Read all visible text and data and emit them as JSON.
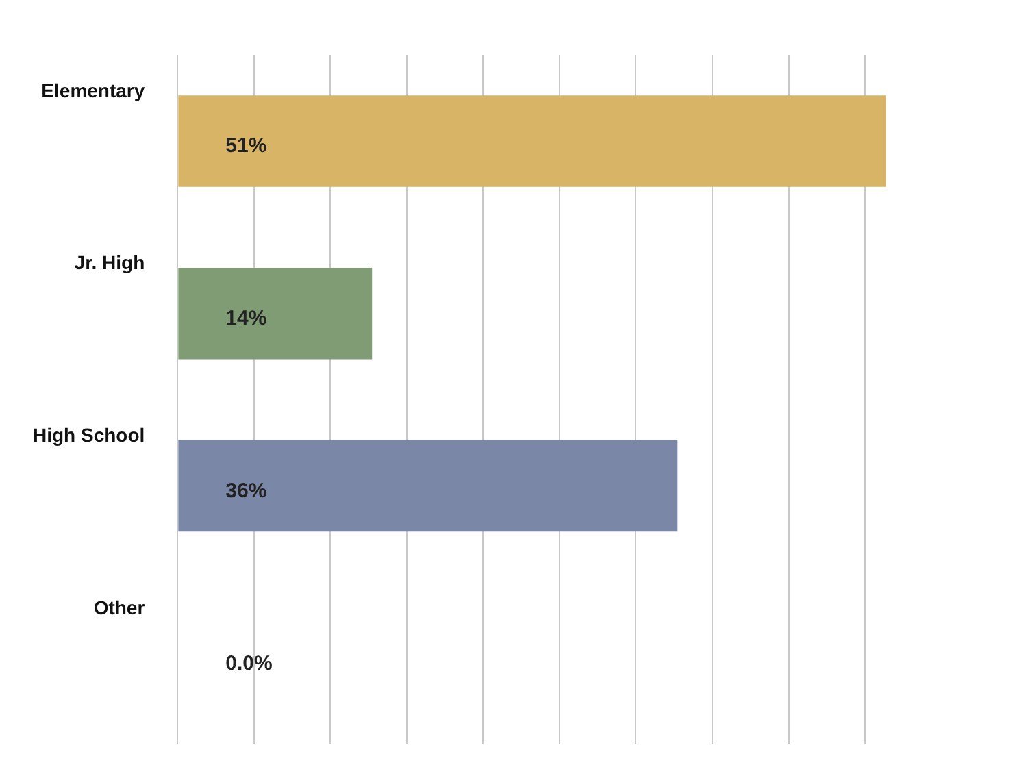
{
  "chart_data": {
    "type": "bar",
    "orientation": "horizontal",
    "categories": [
      "Elementary",
      "Jr. High",
      "High School",
      "Other"
    ],
    "values": [
      51,
      14,
      36,
      0
    ],
    "colors": [
      "#d8b466",
      "#7f9c74",
      "#7b87a6",
      "#9a9a9a"
    ],
    "value_labels": [
      "51%",
      "14%",
      "36%",
      "0.0%"
    ],
    "xticks": [
      {
        "value": 0,
        "label": null
      },
      {
        "value": 5.5,
        "label": null
      },
      {
        "value": 11,
        "label": null
      },
      {
        "value": 16.5,
        "label": null
      },
      {
        "value": 22,
        "label": null
      },
      {
        "value": 27.5,
        "label": null
      },
      {
        "value": 33,
        "label": null
      },
      {
        "value": 38.5,
        "label": null
      },
      {
        "value": 44,
        "label": null
      },
      {
        "value": 49.5,
        "label": null
      }
    ],
    "grid": "x",
    "tick_labels": "y",
    "legend": false
  }
}
